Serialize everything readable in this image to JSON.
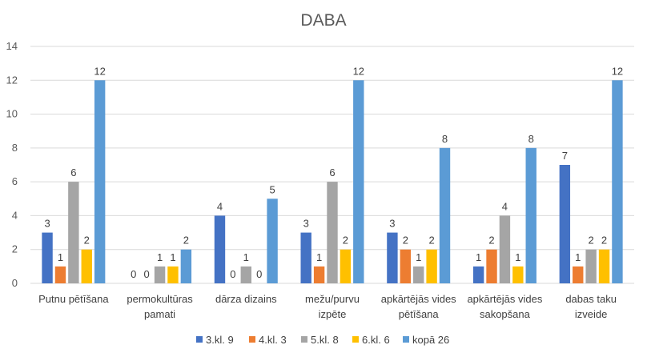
{
  "chart_data": {
    "type": "bar",
    "title": "DABA",
    "xlabel": "",
    "ylabel": "",
    "ylim": [
      0,
      14
    ],
    "yticks": [
      0,
      2,
      4,
      6,
      8,
      10,
      12,
      14
    ],
    "grid": true,
    "legend_position": "bottom",
    "categories": [
      [
        "Putnu pētīšana"
      ],
      [
        "permokultūras",
        "pamati"
      ],
      [
        "dārza dizains"
      ],
      [
        "mežu/purvu",
        "izpēte"
      ],
      [
        "apkārtējās vides",
        "pētīšana"
      ],
      [
        "apkārtējās vides",
        "sakopšana"
      ],
      [
        "dabas taku",
        "izveide"
      ]
    ],
    "series": [
      {
        "name": "3.kl. 9",
        "color": "#4472C4",
        "values": [
          3,
          0,
          4,
          3,
          3,
          1,
          7
        ]
      },
      {
        "name": "4.kl. 3",
        "color": "#ED7D31",
        "values": [
          1,
          0,
          0,
          1,
          2,
          2,
          1
        ]
      },
      {
        "name": "5.kl. 8",
        "color": "#A5A5A5",
        "values": [
          6,
          1,
          1,
          6,
          1,
          4,
          2
        ]
      },
      {
        "name": "6.kl. 6",
        "color": "#FFC000",
        "values": [
          2,
          1,
          0,
          2,
          2,
          1,
          2
        ]
      },
      {
        "name": "kopā 26",
        "color": "#5B9BD5",
        "values": [
          12,
          2,
          5,
          12,
          8,
          8,
          12
        ]
      }
    ]
  }
}
